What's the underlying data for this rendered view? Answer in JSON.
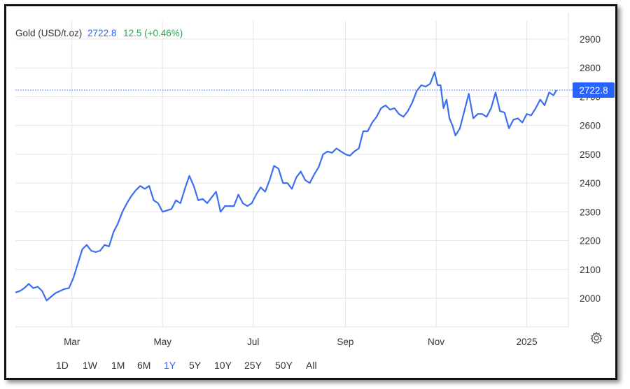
{
  "header": {
    "title": "Gold (USD/t.oz)",
    "price": "2722.8",
    "change": "12.5 (+0.46%)"
  },
  "price_label": "2722.8",
  "timeframes": [
    {
      "label": "1D",
      "active": false
    },
    {
      "label": "1W",
      "active": false
    },
    {
      "label": "1M",
      "active": false
    },
    {
      "label": "6M",
      "active": false
    },
    {
      "label": "1Y",
      "active": true
    },
    {
      "label": "5Y",
      "active": false
    },
    {
      "label": "10Y",
      "active": false
    },
    {
      "label": "25Y",
      "active": false
    },
    {
      "label": "50Y",
      "active": false
    },
    {
      "label": "All",
      "active": false
    }
  ],
  "settings_icon": "gear-icon",
  "colors": {
    "line": "#3b6ef0",
    "accent": "#2962ff",
    "positive": "#22ab55",
    "grid": "#e6e6e6",
    "price_tag": "#2962ff"
  },
  "chart_data": {
    "type": "line",
    "title": "Gold (USD/t.oz)",
    "xlabel": "",
    "ylabel": "",
    "ylim": [
      1900,
      2950
    ],
    "yticks": [
      2000,
      2100,
      2200,
      2300,
      2400,
      2500,
      2600,
      2700,
      2800,
      2900
    ],
    "xticks": [
      {
        "label": "Mar",
        "x": "2024-03-01"
      },
      {
        "label": "May",
        "x": "2024-05-01"
      },
      {
        "label": "Jul",
        "x": "2024-07-01"
      },
      {
        "label": "Sep",
        "x": "2024-09-01"
      },
      {
        "label": "Nov",
        "x": "2024-11-01"
      },
      {
        "label": "2025",
        "x": "2025-01-01"
      }
    ],
    "last_value": 2722.8,
    "grid": true,
    "series": [
      {
        "name": "",
        "points": [
          [
            "2024-01-23",
            2020
          ],
          [
            "2024-01-26",
            2025
          ],
          [
            "2024-01-29",
            2035
          ],
          [
            "2024-02-01",
            2050
          ],
          [
            "2024-02-04",
            2035
          ],
          [
            "2024-02-07",
            2040
          ],
          [
            "2024-02-10",
            2025
          ],
          [
            "2024-02-13",
            1992
          ],
          [
            "2024-02-16",
            2005
          ],
          [
            "2024-02-19",
            2018
          ],
          [
            "2024-02-22",
            2025
          ],
          [
            "2024-02-25",
            2032
          ],
          [
            "2024-02-28",
            2035
          ],
          [
            "2024-03-02",
            2070
          ],
          [
            "2024-03-05",
            2120
          ],
          [
            "2024-03-08",
            2170
          ],
          [
            "2024-03-11",
            2185
          ],
          [
            "2024-03-14",
            2165
          ],
          [
            "2024-03-17",
            2160
          ],
          [
            "2024-03-20",
            2165
          ],
          [
            "2024-03-23",
            2185
          ],
          [
            "2024-03-26",
            2180
          ],
          [
            "2024-03-29",
            2230
          ],
          [
            "2024-04-01",
            2260
          ],
          [
            "2024-04-04",
            2300
          ],
          [
            "2024-04-07",
            2330
          ],
          [
            "2024-04-10",
            2355
          ],
          [
            "2024-04-13",
            2375
          ],
          [
            "2024-04-16",
            2390
          ],
          [
            "2024-04-19",
            2380
          ],
          [
            "2024-04-22",
            2390
          ],
          [
            "2024-04-25",
            2340
          ],
          [
            "2024-04-28",
            2330
          ],
          [
            "2024-05-01",
            2300
          ],
          [
            "2024-05-04",
            2305
          ],
          [
            "2024-05-07",
            2310
          ],
          [
            "2024-05-10",
            2340
          ],
          [
            "2024-05-13",
            2330
          ],
          [
            "2024-05-16",
            2380
          ],
          [
            "2024-05-19",
            2425
          ],
          [
            "2024-05-22",
            2390
          ],
          [
            "2024-05-25",
            2340
          ],
          [
            "2024-05-28",
            2345
          ],
          [
            "2024-05-31",
            2330
          ],
          [
            "2024-06-03",
            2350
          ],
          [
            "2024-06-06",
            2370
          ],
          [
            "2024-06-09",
            2300
          ],
          [
            "2024-06-12",
            2320
          ],
          [
            "2024-06-15",
            2320
          ],
          [
            "2024-06-18",
            2320
          ],
          [
            "2024-06-21",
            2360
          ],
          [
            "2024-06-24",
            2330
          ],
          [
            "2024-06-27",
            2320
          ],
          [
            "2024-06-30",
            2330
          ],
          [
            "2024-07-03",
            2360
          ],
          [
            "2024-07-06",
            2385
          ],
          [
            "2024-07-09",
            2370
          ],
          [
            "2024-07-12",
            2410
          ],
          [
            "2024-07-15",
            2460
          ],
          [
            "2024-07-18",
            2450
          ],
          [
            "2024-07-21",
            2400
          ],
          [
            "2024-07-24",
            2400
          ],
          [
            "2024-07-27",
            2380
          ],
          [
            "2024-07-30",
            2420
          ],
          [
            "2024-08-02",
            2440
          ],
          [
            "2024-08-05",
            2410
          ],
          [
            "2024-08-08",
            2400
          ],
          [
            "2024-08-11",
            2430
          ],
          [
            "2024-08-14",
            2455
          ],
          [
            "2024-08-17",
            2500
          ],
          [
            "2024-08-20",
            2510
          ],
          [
            "2024-08-23",
            2505
          ],
          [
            "2024-08-26",
            2520
          ],
          [
            "2024-08-29",
            2510
          ],
          [
            "2024-09-01",
            2500
          ],
          [
            "2024-09-04",
            2495
          ],
          [
            "2024-09-07",
            2510
          ],
          [
            "2024-09-10",
            2520
          ],
          [
            "2024-09-13",
            2580
          ],
          [
            "2024-09-16",
            2580
          ],
          [
            "2024-09-19",
            2610
          ],
          [
            "2024-09-22",
            2630
          ],
          [
            "2024-09-25",
            2660
          ],
          [
            "2024-09-28",
            2670
          ],
          [
            "2024-10-01",
            2655
          ],
          [
            "2024-10-04",
            2660
          ],
          [
            "2024-10-07",
            2640
          ],
          [
            "2024-10-10",
            2630
          ],
          [
            "2024-10-13",
            2650
          ],
          [
            "2024-10-16",
            2680
          ],
          [
            "2024-10-19",
            2720
          ],
          [
            "2024-10-22",
            2740
          ],
          [
            "2024-10-25",
            2735
          ],
          [
            "2024-10-28",
            2745
          ],
          [
            "2024-10-31",
            2785
          ],
          [
            "2024-11-02",
            2740
          ],
          [
            "2024-11-04",
            2740
          ],
          [
            "2024-11-06",
            2660
          ],
          [
            "2024-11-08",
            2690
          ],
          [
            "2024-11-10",
            2625
          ],
          [
            "2024-11-12",
            2600
          ],
          [
            "2024-11-14",
            2565
          ],
          [
            "2024-11-17",
            2590
          ],
          [
            "2024-11-20",
            2650
          ],
          [
            "2024-11-23",
            2710
          ],
          [
            "2024-11-26",
            2625
          ],
          [
            "2024-11-29",
            2640
          ],
          [
            "2024-12-02",
            2640
          ],
          [
            "2024-12-05",
            2630
          ],
          [
            "2024-12-08",
            2660
          ],
          [
            "2024-12-11",
            2715
          ],
          [
            "2024-12-14",
            2650
          ],
          [
            "2024-12-17",
            2645
          ],
          [
            "2024-12-20",
            2590
          ],
          [
            "2024-12-23",
            2620
          ],
          [
            "2024-12-26",
            2625
          ],
          [
            "2024-12-29",
            2610
          ],
          [
            "2025-01-01",
            2640
          ],
          [
            "2025-01-04",
            2635
          ],
          [
            "2025-01-07",
            2660
          ],
          [
            "2025-01-10",
            2690
          ],
          [
            "2025-01-13",
            2670
          ],
          [
            "2025-01-16",
            2715
          ],
          [
            "2025-01-19",
            2705
          ],
          [
            "2025-01-21",
            2722.8
          ]
        ]
      }
    ]
  }
}
